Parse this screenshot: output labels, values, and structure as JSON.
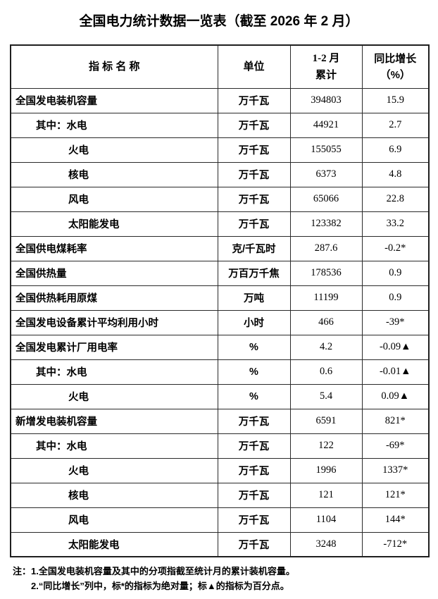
{
  "title": "全国电力统计数据一览表（截至 2026 年 2 月）",
  "table": {
    "headers": {
      "indicator": "指 标 名 称",
      "unit": "单位",
      "cumulative_line1": "1-2 月",
      "cumulative_line2": "累计",
      "yoy_line1": "同比增长",
      "yoy_line2": "（%）"
    },
    "rows": [
      {
        "name": "全国发电装机容量",
        "indent": 0,
        "unit": "万千瓦",
        "value": "394803",
        "growth": "15.9"
      },
      {
        "name": "其中：水电",
        "indent": 1,
        "unit": "万千瓦",
        "value": "44921",
        "growth": "2.7"
      },
      {
        "name": "火电",
        "indent": 2,
        "unit": "万千瓦",
        "value": "155055",
        "growth": "6.9"
      },
      {
        "name": "核电",
        "indent": 2,
        "unit": "万千瓦",
        "value": "6373",
        "growth": "4.8"
      },
      {
        "name": "风电",
        "indent": 2,
        "unit": "万千瓦",
        "value": "65066",
        "growth": "22.8"
      },
      {
        "name": "太阳能发电",
        "indent": 2,
        "unit": "万千瓦",
        "value": "123382",
        "growth": "33.2"
      },
      {
        "name": "全国供电煤耗率",
        "indent": 0,
        "unit": "克/千瓦时",
        "value": "287.6",
        "growth": "-0.2*"
      },
      {
        "name": "全国供热量",
        "indent": 0,
        "unit": "万百万千焦",
        "value": "178536",
        "growth": "0.9"
      },
      {
        "name": "全国供热耗用原煤",
        "indent": 0,
        "unit": "万吨",
        "value": "11199",
        "growth": "0.9"
      },
      {
        "name": "全国发电设备累计平均利用小时",
        "indent": 0,
        "unit": "小时",
        "value": "466",
        "growth": "-39*"
      },
      {
        "name": "全国发电累计厂用电率",
        "indent": 0,
        "unit": "%",
        "value": "4.2",
        "growth": "-0.09▲"
      },
      {
        "name": "其中：水电",
        "indent": 1,
        "unit": "%",
        "value": "0.6",
        "growth": "-0.01▲"
      },
      {
        "name": "火电",
        "indent": 2,
        "unit": "%",
        "value": "5.4",
        "growth": "0.09▲"
      },
      {
        "name": "新增发电装机容量",
        "indent": 0,
        "unit": "万千瓦",
        "value": "6591",
        "growth": "821*"
      },
      {
        "name": "其中：水电",
        "indent": 1,
        "unit": "万千瓦",
        "value": "122",
        "growth": "-69*"
      },
      {
        "name": "火电",
        "indent": 2,
        "unit": "万千瓦",
        "value": "1996",
        "growth": "1337*"
      },
      {
        "name": "核电",
        "indent": 2,
        "unit": "万千瓦",
        "value": "121",
        "growth": "121*"
      },
      {
        "name": "风电",
        "indent": 2,
        "unit": "万千瓦",
        "value": "1104",
        "growth": "144*"
      },
      {
        "name": "太阳能发电",
        "indent": 2,
        "unit": "万千瓦",
        "value": "3248",
        "growth": "-712*"
      }
    ]
  },
  "notes": {
    "prefix": "注：",
    "items": [
      "1.全国发电装机容量及其中的分项指截至统计月的累计装机容量。",
      "2.“同比增长”列中，标*的指标为绝对量；标▲的指标为百分点。"
    ]
  },
  "colors": {
    "text": "#000000",
    "border": "#1f1f1f",
    "background": "#ffffff"
  }
}
